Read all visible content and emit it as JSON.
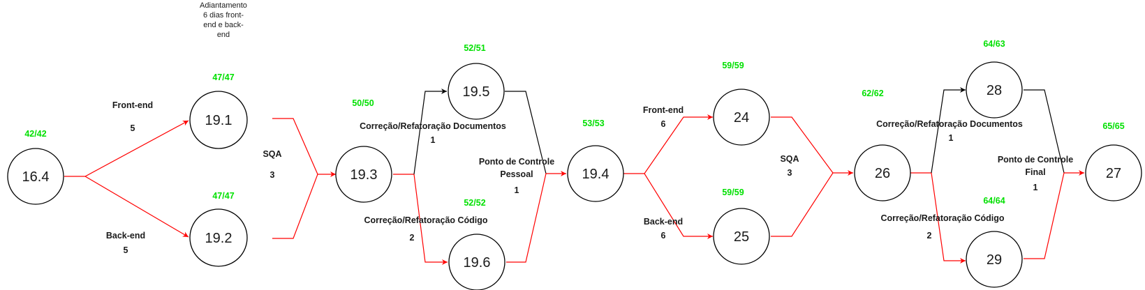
{
  "colors": {
    "critical_edge": "#ff0000",
    "normal_edge": "#000000",
    "slack_text": "#00e000"
  },
  "nodes": {
    "n164": "16.4",
    "n191": "19.1",
    "n192": "19.2",
    "n193": "19.3",
    "n195": "19.5",
    "n196": "19.6",
    "n194": "19.4",
    "n24": "24",
    "n25": "25",
    "n26": "26",
    "n28": "28",
    "n29": "29",
    "n27": "27"
  },
  "slack": {
    "n164": "42/42",
    "n191": "47/47",
    "n192": "47/47",
    "n193": "50/50",
    "n195": "52/51",
    "n196": "52/52",
    "n194": "53/53",
    "n24": "59/59",
    "n25": "59/59",
    "n26": "62/62",
    "n28": "64/63",
    "n29": "64/64",
    "n27": "65/65"
  },
  "note": [
    "Adiantamento",
    "6 dias front-",
    "end e back-",
    "end"
  ],
  "activities": {
    "fe1": {
      "name": "Front-end",
      "duration": "5"
    },
    "be1": {
      "name": "Back-end",
      "duration": "5"
    },
    "sqa1": {
      "name": "SQA",
      "duration": "3"
    },
    "doc1": {
      "name": "Correção/Refatoração Documentos",
      "duration": "1"
    },
    "code1": {
      "name": "Correção/Refatoração Código",
      "duration": "2"
    },
    "pc1": {
      "name_line1": "Ponto de Controle",
      "name_line2": "Pessoal",
      "duration": "1"
    },
    "fe2": {
      "name": "Front-end",
      "duration": "6"
    },
    "be2": {
      "name": "Back-end",
      "duration": "6"
    },
    "sqa2": {
      "name": "SQA",
      "duration": "3"
    },
    "doc2": {
      "name": "Correção/Refatoração Documentos",
      "duration": "1"
    },
    "code2": {
      "name": "Correção/Refatoração Código",
      "duration": "2"
    },
    "pc2": {
      "name_line1": "Ponto de Controle",
      "name_line2": "Final",
      "duration": "1"
    }
  }
}
